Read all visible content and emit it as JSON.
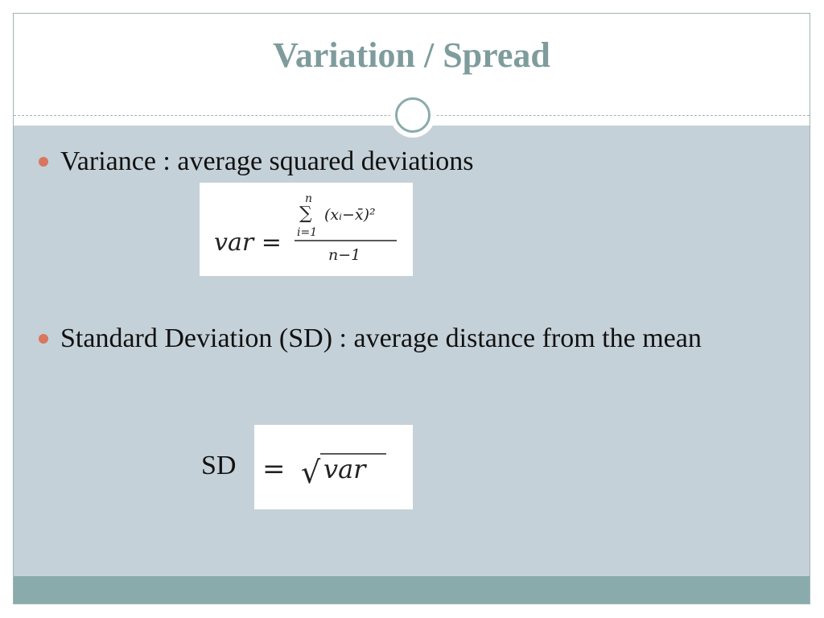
{
  "title": "Variation / Spread",
  "bullets": [
    {
      "text": "Variance : average squared deviations"
    },
    {
      "text": "Standard Deviation (SD) : average distance from the mean"
    }
  ],
  "variance_formula": {
    "lhs": "var =",
    "upper": "n",
    "sigma": "∑",
    "lower": "i=1",
    "term": "(xᵢ−x̄)²",
    "denominator": "n−1"
  },
  "sd_formula": {
    "label": "SD",
    "equals": "=",
    "radical": "√",
    "radicand": "var"
  }
}
